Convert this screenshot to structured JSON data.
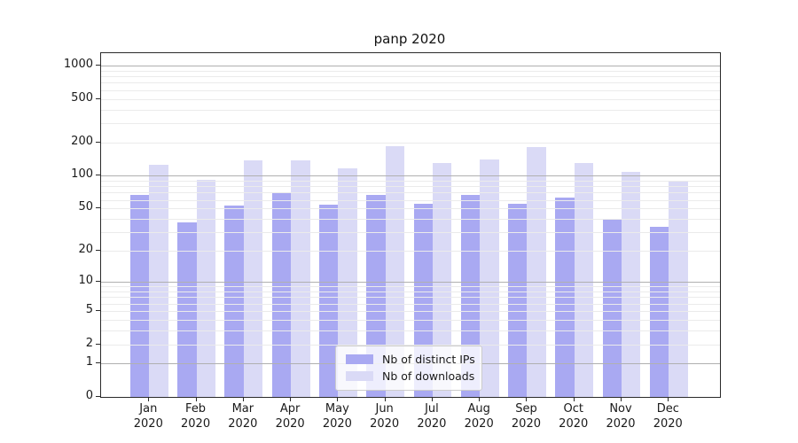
{
  "chart_data": {
    "type": "bar",
    "title": "panp 2020",
    "categories": [
      "Jan",
      "Feb",
      "Mar",
      "Apr",
      "May",
      "Jun",
      "Jul",
      "Aug",
      "Sep",
      "Oct",
      "Nov",
      "Dec"
    ],
    "category_year": "2020",
    "series": [
      {
        "name": "Nb of distinct IPs",
        "color": "#a9a9f2",
        "values": [
          67,
          37,
          53,
          69,
          54,
          66,
          55,
          66,
          55,
          63,
          39,
          34
        ]
      },
      {
        "name": "Nb of downloads",
        "color": "#dadaf6",
        "values": [
          126,
          91,
          139,
          139,
          117,
          187,
          131,
          141,
          182,
          131,
          108,
          88
        ]
      }
    ],
    "yscale": "log1p",
    "ylim": [
      0,
      1300
    ],
    "yticks": [
      0,
      1,
      2,
      5,
      10,
      20,
      50,
      100,
      200,
      500,
      1000
    ],
    "grid": "on",
    "legend_position": "lower center"
  },
  "colors": {
    "major_grid": "#b0b0b0",
    "minor_grid": "#ebebeb",
    "spine": "#2a2a2a",
    "text": "#1a1a1a"
  }
}
